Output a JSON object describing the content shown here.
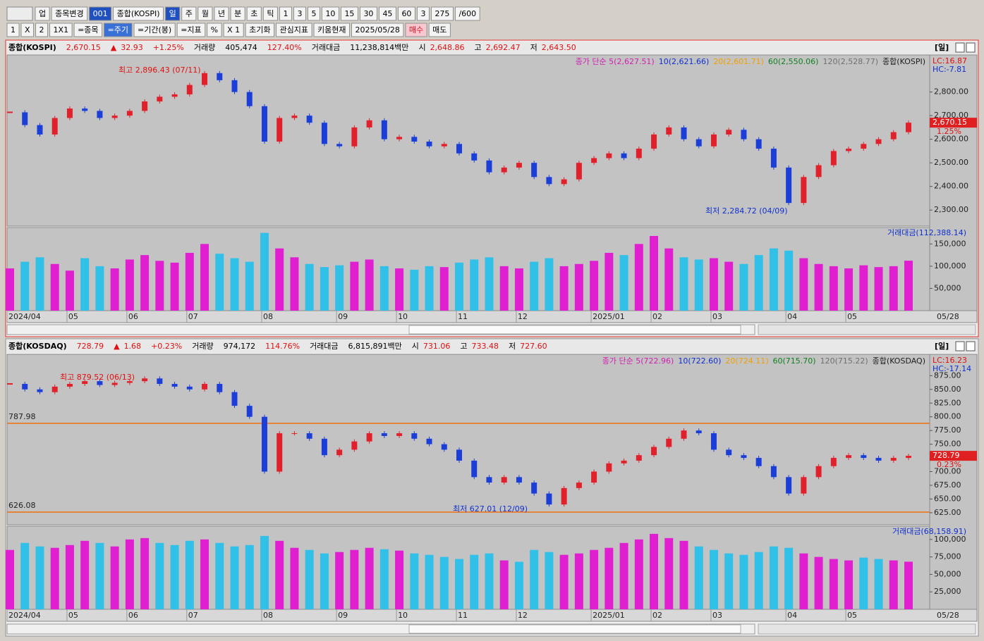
{
  "toolbar": {
    "row1": [
      "업",
      "종목변경",
      "001",
      "종합(KOSPI)",
      "일",
      "주",
      "월",
      "년",
      "분",
      "초",
      "틱",
      "1",
      "3",
      "5",
      "10",
      "15",
      "30",
      "45",
      "60",
      "3",
      "275",
      "/600"
    ],
    "row2": [
      "1",
      "X",
      "2",
      "1X1",
      "=종목",
      "=주기",
      "=기간(봉)",
      "=지표",
      "%",
      "X 1",
      "초기화",
      "관심지표",
      "키움현재",
      "2025/05/28",
      "매수",
      "매도"
    ]
  },
  "panels": [
    {
      "header": [
        "종합(KOSPI)",
        "2,670.15",
        "▲",
        "32.93",
        "+1.25%",
        "거래량",
        "405,474",
        "127.40%",
        "거래대금",
        "11,238,814백만",
        "시",
        "2,648.86",
        "고",
        "2,692.47",
        "저",
        "2,643.50"
      ],
      "period": "[일]",
      "legend": [
        {
          "text": "종가 단순 5(2,627.51)",
          "color": "#d020b0"
        },
        {
          "text": "10(2,621.66)",
          "color": "#1030d0"
        },
        {
          "text": "20(2,601.71)",
          "color": "#f0a000"
        },
        {
          "text": "60(2,550.06)",
          "color": "#108020"
        },
        {
          "text": "120(2,528.77)",
          "color": "#707070"
        },
        {
          "text": "종합(KOSPI)",
          "color": "#202020"
        }
      ],
      "lc": "LC:16.87",
      "hc": "HC:-7.81",
      "price_tag": {
        "value": "2,670.15",
        "pct": "1.25%"
      },
      "high_label": "최고 2,896.43 (07/11)",
      "low_label": "최저 2,284.72 (04/09)",
      "volume_legend": "거래대금(112,388.14)",
      "last_date": "05/28"
    },
    {
      "header": [
        "종합(KOSDAQ)",
        "728.79",
        "▲",
        "1.68",
        "+0.23%",
        "거래량",
        "974,172",
        "114.76%",
        "거래대금",
        "6,815,891백만",
        "시",
        "731.06",
        "고",
        "733.48",
        "저",
        "727.60"
      ],
      "period": "[일]",
      "legend": [
        {
          "text": "종가 단순 5(722.96)",
          "color": "#d020b0"
        },
        {
          "text": "10(722.60)",
          "color": "#1030d0"
        },
        {
          "text": "20(724.11)",
          "color": "#f0a000"
        },
        {
          "text": "60(715.70)",
          "color": "#108020"
        },
        {
          "text": "120(715.22)",
          "color": "#707070"
        },
        {
          "text": "종합(KOSDAQ)",
          "color": "#202020"
        }
      ],
      "lc": "LC:16.23",
      "hc": "HC:-17.14",
      "price_tag": {
        "value": "728.79",
        "pct": "0.23%"
      },
      "high_label": "최고 879.52 (06/13)",
      "low_label": "최저 627.01 (12/09)",
      "volume_legend": "거래대금(68,158.91)",
      "last_date": "05/28"
    }
  ],
  "chart_data": [
    {
      "type": "candlestick",
      "categories": [
        "2024/04",
        null,
        null,
        null,
        "05",
        null,
        null,
        null,
        "06",
        null,
        null,
        null,
        "07",
        null,
        null,
        null,
        null,
        "08",
        null,
        null,
        null,
        null,
        "09",
        null,
        null,
        null,
        "10",
        null,
        null,
        null,
        "11",
        null,
        null,
        null,
        "12",
        null,
        null,
        null,
        null,
        "2025/01",
        null,
        null,
        null,
        "02",
        null,
        null,
        null,
        "03",
        null,
        null,
        null,
        null,
        "04",
        null,
        null,
        null,
        "05",
        null,
        null,
        null,
        null
      ],
      "values": [
        2714,
        2660,
        2620,
        2690,
        2730,
        2720,
        2690,
        2700,
        2720,
        2760,
        2780,
        2790,
        2830,
        2880,
        2850,
        2800,
        2740,
        2590,
        2690,
        2700,
        2670,
        2580,
        2570,
        2650,
        2680,
        2600,
        2610,
        2590,
        2570,
        2580,
        2540,
        2510,
        2460,
        2480,
        2500,
        2440,
        2410,
        2430,
        2500,
        2520,
        2540,
        2520,
        2560,
        2620,
        2650,
        2600,
        2570,
        2620,
        2640,
        2600,
        2560,
        2480,
        2330,
        2440,
        2490,
        2550,
        2560,
        2580,
        2600,
        2630,
        2670.15
      ],
      "up_color": "#e0202a",
      "down_color": "#1c3ed8",
      "ylim": [
        2232,
        2957
      ],
      "yticks": [
        {
          "value": 2300,
          "label": "2,300.00"
        },
        {
          "value": 2400,
          "label": "2,400.00"
        },
        {
          "value": 2500,
          "label": "2,500.00"
        },
        {
          "value": 2600,
          "label": "2,600.00"
        },
        {
          "value": 2700,
          "label": "2,700.00"
        },
        {
          "value": 2800,
          "label": "2,800.00"
        }
      ],
      "volume": {
        "values": [
          95000,
          110000,
          120000,
          105000,
          90000,
          118000,
          100000,
          95000,
          115000,
          125000,
          112000,
          108000,
          130000,
          150000,
          128000,
          118000,
          110000,
          175000,
          140000,
          120000,
          105000,
          98000,
          102000,
          110000,
          115000,
          100000,
          95000,
          92000,
          100000,
          98000,
          108000,
          115000,
          120000,
          100000,
          95000,
          110000,
          118000,
          100000,
          105000,
          112000,
          130000,
          125000,
          150000,
          168000,
          140000,
          120000,
          115000,
          118000,
          110000,
          105000,
          125000,
          140000,
          135000,
          118000,
          105000,
          100000,
          95000,
          102000,
          98000,
          100000,
          112388
        ],
        "up_color": "#e020d0",
        "down_color": "#30c0e8",
        "ylim": [
          0,
          187000
        ],
        "yticks": [
          {
            "value": 50000,
            "label": "50,000"
          },
          {
            "value": 100000,
            "label": "100,000"
          },
          {
            "value": 150000,
            "label": "150,000"
          }
        ]
      },
      "ref_lines": []
    },
    {
      "type": "candlestick",
      "categories": [
        "2024/04",
        null,
        null,
        null,
        "05",
        null,
        null,
        null,
        "06",
        null,
        null,
        null,
        "07",
        null,
        null,
        null,
        null,
        "08",
        null,
        null,
        null,
        null,
        "09",
        null,
        null,
        null,
        "10",
        null,
        null,
        null,
        "11",
        null,
        null,
        null,
        "12",
        null,
        null,
        null,
        null,
        "2025/01",
        null,
        null,
        null,
        "02",
        null,
        null,
        null,
        "03",
        null,
        null,
        null,
        null,
        "04",
        null,
        null,
        null,
        "05",
        null,
        null,
        null,
        null
      ],
      "values": [
        860,
        850,
        845,
        855,
        860,
        865,
        858,
        862,
        865,
        870,
        860,
        855,
        850,
        860,
        845,
        820,
        800,
        700,
        770,
        770,
        760,
        730,
        740,
        755,
        770,
        765,
        770,
        760,
        750,
        740,
        720,
        690,
        680,
        690,
        680,
        660,
        640,
        670,
        680,
        700,
        715,
        720,
        730,
        745,
        760,
        775,
        770,
        740,
        730,
        725,
        710,
        690,
        660,
        690,
        710,
        725,
        730,
        725,
        720,
        725,
        728.79
      ],
      "up_color": "#e0202a",
      "down_color": "#1c3ed8",
      "ylim": [
        603,
        914
      ],
      "yticks": [
        {
          "value": 625,
          "label": "625.00"
        },
        {
          "value": 650,
          "label": "650.00"
        },
        {
          "value": 675,
          "label": "675.00"
        },
        {
          "value": 700,
          "label": "700.00"
        },
        {
          "value": 725,
          "label": "725.00"
        },
        {
          "value": 750,
          "label": "750.00"
        },
        {
          "value": 775,
          "label": "775.00"
        },
        {
          "value": 800,
          "label": "800.00"
        },
        {
          "value": 825,
          "label": "825.00"
        },
        {
          "value": 850,
          "label": "850.00"
        },
        {
          "value": 875,
          "label": "875.00"
        }
      ],
      "volume": {
        "values": [
          85000,
          95000,
          90000,
          88000,
          92000,
          98000,
          95000,
          90000,
          100000,
          102000,
          95000,
          92000,
          98000,
          100000,
          95000,
          90000,
          92000,
          105000,
          98000,
          88000,
          85000,
          80000,
          82000,
          85000,
          88000,
          86000,
          84000,
          80000,
          78000,
          75000,
          72000,
          78000,
          80000,
          70000,
          68000,
          85000,
          82000,
          78000,
          80000,
          85000,
          88000,
          95000,
          100000,
          108000,
          102000,
          98000,
          90000,
          85000,
          80000,
          78000,
          82000,
          90000,
          88000,
          80000,
          75000,
          72000,
          70000,
          74000,
          72000,
          70000,
          68159
        ],
        "up_color": "#e020d0",
        "down_color": "#30c0e8",
        "ylim": [
          0,
          119000
        ],
        "yticks": [
          {
            "value": 25000,
            "label": "25,000"
          },
          {
            "value": 50000,
            "label": "50,000"
          },
          {
            "value": 75000,
            "label": "75,000"
          },
          {
            "value": 100000,
            "label": "100,000"
          }
        ]
      },
      "ref_lines": [
        {
          "value": 787.98,
          "label": "787.98",
          "color": "#f07010"
        },
        {
          "value": 626.08,
          "label": "626.08",
          "color": "#f07010"
        }
      ]
    }
  ]
}
